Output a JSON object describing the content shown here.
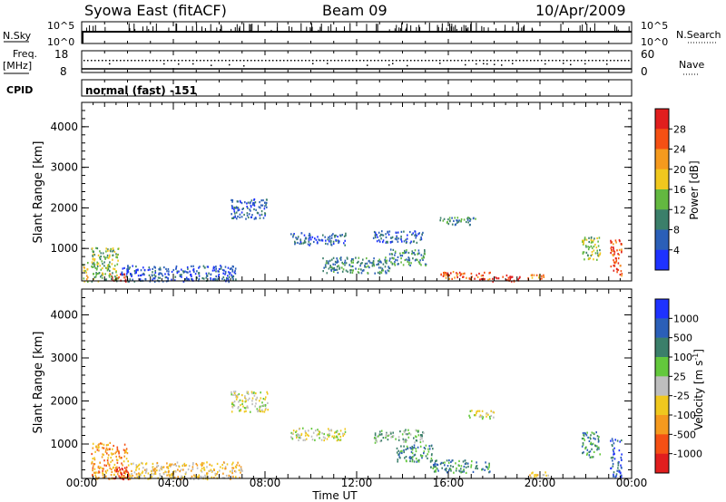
{
  "header": {
    "title": "Syowa East (fitACF)",
    "beam": "Beam 09",
    "date": "10/Apr/2009"
  },
  "summary_panels": {
    "nsky_label": "N.Sky",
    "nsky_ticks": [
      "10^5",
      "10^0"
    ],
    "nsearch_label": "N.Search",
    "nsearch_ticks": [
      "10^5",
      "10^0"
    ],
    "freq_label": "Freq.",
    "freq_unit": "[MHz]",
    "freq_ticks": [
      "18",
      "8"
    ],
    "nave_label": "Nave",
    "nave_ticks": [
      "60",
      "0"
    ],
    "cpid_label": "CPID",
    "cpid_value": "normal (fast) -151"
  },
  "chart_data": [
    {
      "type": "heatmap",
      "name": "power",
      "ylabel": "Slant Range [km]",
      "yticks": [
        "1000",
        "2000",
        "3000",
        "4000"
      ],
      "ylim": [
        200,
        4600
      ],
      "xlim_hours": [
        0,
        24
      ],
      "colorbar_label": "Power [dB]",
      "colorbar_ticks": [
        "4",
        "8",
        "12",
        "16",
        "20",
        "24",
        "28"
      ],
      "colorbar_colors": [
        "#1e32ff",
        "#2b5fb8",
        "#3b7f6a",
        "#63b840",
        "#f0c81e",
        "#f59a1e",
        "#f55014",
        "#e11e1e"
      ],
      "blobs": [
        {
          "t": 0.1,
          "r": 300,
          "tw": 0.3,
          "rw": 800,
          "lvl": 4
        },
        {
          "t": 1.6,
          "r": 300,
          "tw": 0.8,
          "rw": 220,
          "lvl": 7
        },
        {
          "t": 1.0,
          "r": 600,
          "tw": 1.2,
          "rw": 900,
          "lvl": 3
        },
        {
          "t": 7.3,
          "r": 2000,
          "tw": 1.6,
          "rw": 500,
          "lvl": 1
        },
        {
          "t": 10.3,
          "r": 1250,
          "tw": 2.4,
          "rw": 300,
          "lvl": 1
        },
        {
          "t": 13.8,
          "r": 1300,
          "tw": 2.2,
          "rw": 300,
          "lvl": 1
        },
        {
          "t": 16.4,
          "r": 1700,
          "tw": 1.6,
          "rw": 200,
          "lvl": 2
        },
        {
          "t": 16.7,
          "r": 350,
          "tw": 2.2,
          "rw": 200,
          "lvl": 6
        },
        {
          "t": 18.5,
          "r": 280,
          "tw": 1.2,
          "rw": 160,
          "lvl": 7
        },
        {
          "t": 14.2,
          "r": 800,
          "tw": 1.6,
          "rw": 400,
          "lvl": 2
        },
        {
          "t": 22.2,
          "r": 1000,
          "tw": 0.8,
          "rw": 600,
          "lvl": 3
        },
        {
          "t": 23.3,
          "r": 800,
          "tw": 0.5,
          "rw": 900,
          "lvl": 6
        },
        {
          "t": 19.9,
          "r": 300,
          "tw": 0.9,
          "rw": 140,
          "lvl": 5
        },
        {
          "t": 4.2,
          "r": 400,
          "tw": 5.0,
          "rw": 400,
          "lvl": 1
        },
        {
          "t": 12.0,
          "r": 600,
          "tw": 3.0,
          "rw": 400,
          "lvl": 2
        }
      ]
    },
    {
      "type": "heatmap",
      "name": "velocity",
      "ylabel": "Slant Range [km]",
      "yticks": [
        "1000",
        "2000",
        "3000",
        "4000"
      ],
      "ylim": [
        200,
        4600
      ],
      "xlim_hours": [
        0,
        24
      ],
      "xticks": [
        "00:00",
        "04:00",
        "08:00",
        "12:00",
        "16:00",
        "20:00",
        "00:00"
      ],
      "xlabel": "Time UT",
      "colorbar_label": "Velocity [m s^-1]",
      "colorbar_ticks": [
        "1000",
        "500",
        "100",
        "25",
        "-25",
        "-100",
        "-500",
        "-1000"
      ],
      "colorbar_colors": [
        "#1e32ff",
        "#2b5fb8",
        "#3b7f6a",
        "#63c83c",
        "#bebebe",
        "#f0c81e",
        "#f59a1e",
        "#f55014",
        "#e11e1e"
      ],
      "blobs": [
        {
          "t": 1.2,
          "r": 600,
          "tw": 1.6,
          "rw": 900,
          "lvl": 6
        },
        {
          "t": 1.7,
          "r": 350,
          "tw": 0.7,
          "rw": 300,
          "lvl": 8
        },
        {
          "t": 7.3,
          "r": 2000,
          "tw": 1.6,
          "rw": 500,
          "lvl": 4
        },
        {
          "t": 10.3,
          "r": 1250,
          "tw": 2.4,
          "rw": 300,
          "lvl": 4
        },
        {
          "t": 13.8,
          "r": 1200,
          "tw": 2.2,
          "rw": 300,
          "lvl": 3
        },
        {
          "t": 16.5,
          "r": 500,
          "tw": 2.6,
          "rw": 300,
          "lvl": 2
        },
        {
          "t": 17.4,
          "r": 1700,
          "tw": 1.2,
          "rw": 200,
          "lvl": 4
        },
        {
          "t": 22.2,
          "r": 1000,
          "tw": 0.8,
          "rw": 600,
          "lvl": 2
        },
        {
          "t": 23.3,
          "r": 700,
          "tw": 0.5,
          "rw": 900,
          "lvl": 1
        },
        {
          "t": 4.5,
          "r": 400,
          "tw": 5.0,
          "rw": 400,
          "lvl": 5
        },
        {
          "t": 14.5,
          "r": 800,
          "tw": 1.6,
          "rw": 400,
          "lvl": 2
        },
        {
          "t": 19.9,
          "r": 300,
          "tw": 0.9,
          "rw": 140,
          "lvl": 5
        }
      ]
    }
  ]
}
